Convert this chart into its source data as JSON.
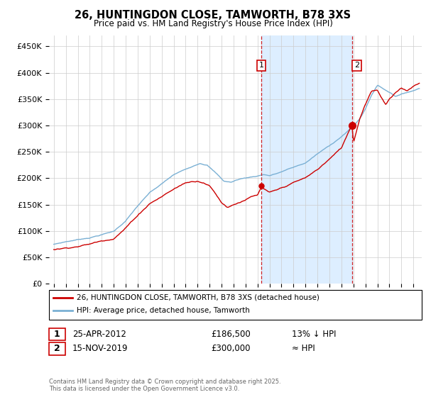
{
  "title": "26, HUNTINGDON CLOSE, TAMWORTH, B78 3XS",
  "subtitle": "Price paid vs. HM Land Registry's House Price Index (HPI)",
  "legend_label1": "26, HUNTINGDON CLOSE, TAMWORTH, B78 3XS (detached house)",
  "legend_label2": "HPI: Average price, detached house, Tamworth",
  "transaction1_date": "25-APR-2012",
  "transaction1_price": "£186,500",
  "transaction1_hpi": "13% ↓ HPI",
  "transaction2_date": "15-NOV-2019",
  "transaction2_price": "£300,000",
  "transaction2_hpi": "≈ HPI",
  "footer": "Contains HM Land Registry data © Crown copyright and database right 2025.\nThis data is licensed under the Open Government Licence v3.0.",
  "line1_color": "#cc0000",
  "line2_color": "#7ab0d4",
  "vline_color": "#cc0000",
  "shade_color": "#ddeeff",
  "bg_color": "#f0f4ff",
  "grid_color": "#cccccc",
  "ylim": [
    0,
    470000
  ],
  "yticks": [
    0,
    50000,
    100000,
    150000,
    200000,
    250000,
    300000,
    350000,
    400000,
    450000
  ],
  "ytick_labels": [
    "£0",
    "£50K",
    "£100K",
    "£150K",
    "£200K",
    "£250K",
    "£300K",
    "£350K",
    "£400K",
    "£450K"
  ],
  "t1_x": 2012.32,
  "t1_y": 186500,
  "t2_x": 2019.88,
  "t2_y": 300000,
  "xlim_left": 1994.6,
  "xlim_right": 2025.7
}
